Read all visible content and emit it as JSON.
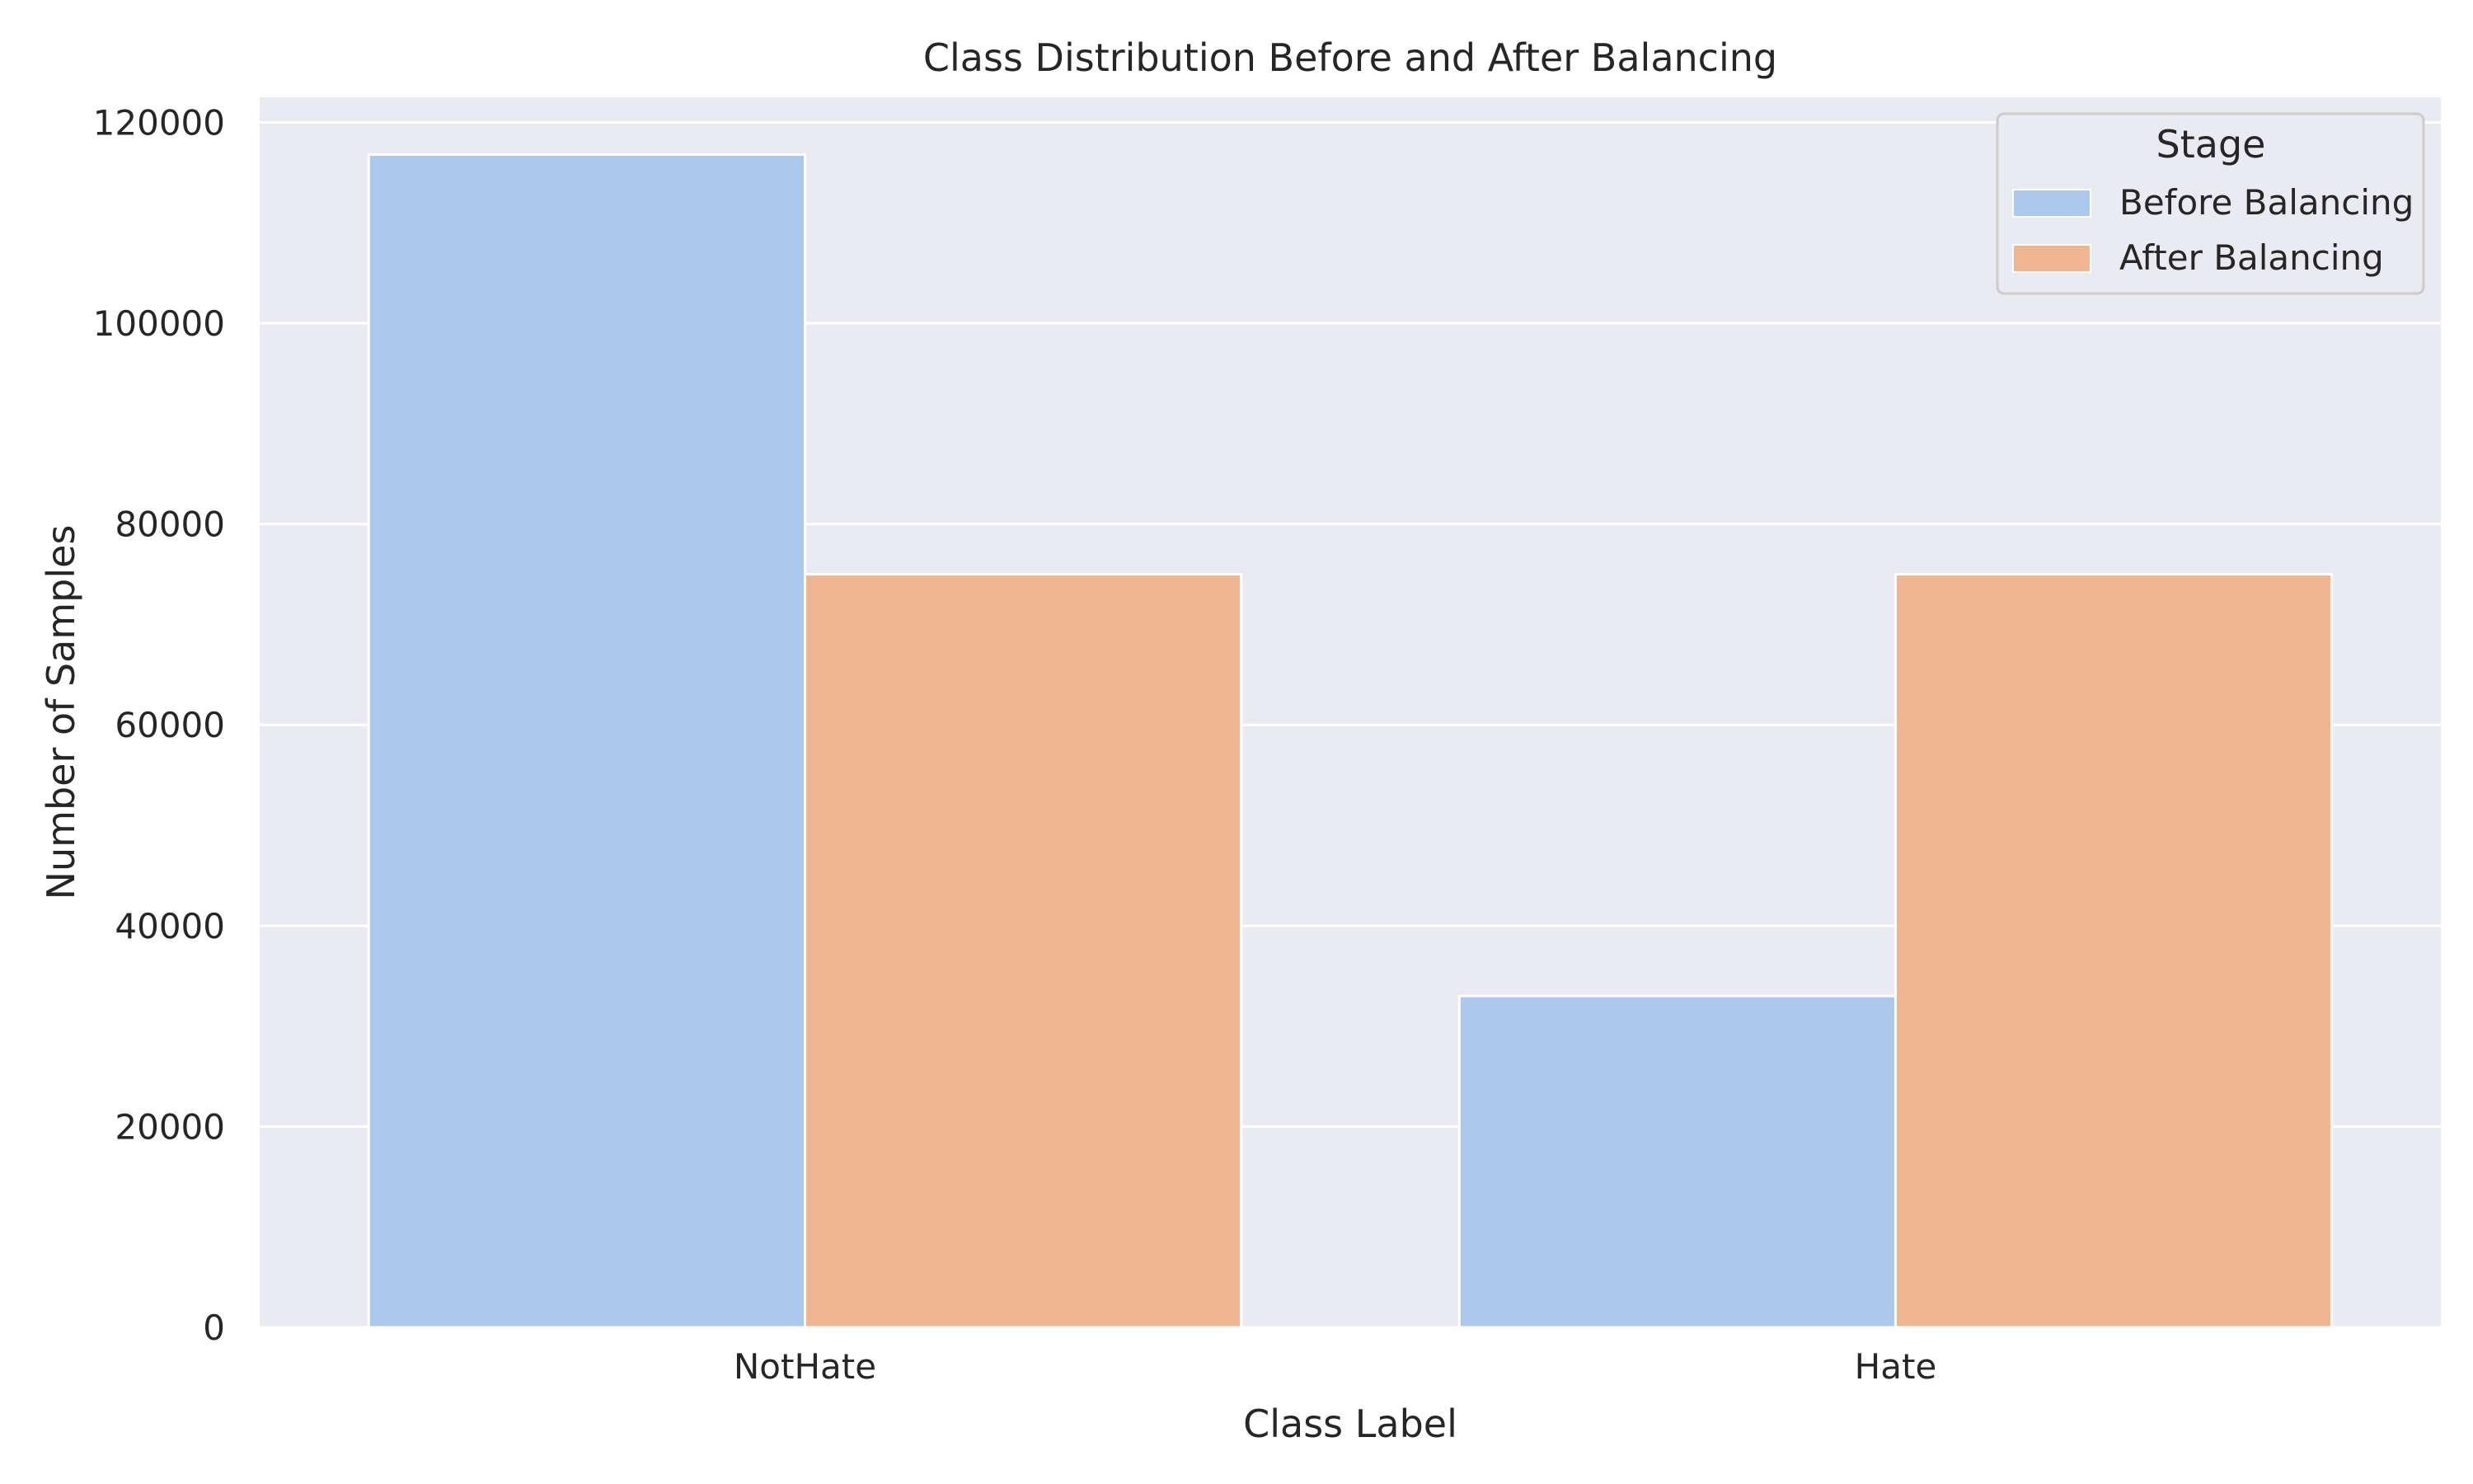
{
  "chart_data": {
    "type": "bar",
    "title": "Class Distribution Before and After Balancing",
    "xlabel": "Class Label",
    "ylabel": "Number of Samples",
    "categories": [
      "NotHate",
      "Hate"
    ],
    "series": [
      {
        "name": "Before Balancing",
        "values": [
          116800,
          33000
        ],
        "color": "#abc9ec"
      },
      {
        "name": "After Balancing",
        "values": [
          75000,
          75000
        ],
        "color": "#f0b692"
      }
    ],
    "ylim": [
      0,
      122500
    ],
    "yticks": [
      0,
      20000,
      40000,
      60000,
      80000,
      100000,
      120000
    ],
    "ytick_labels": [
      "0",
      "20000",
      "40000",
      "60000",
      "80000",
      "100000",
      "120000"
    ],
    "grid": true,
    "legend": {
      "title": "Stage",
      "placement": "top-right"
    },
    "colors": {
      "plot_background": "#eaeaf2",
      "grid": "#ffffff",
      "text": "#262626"
    }
  }
}
